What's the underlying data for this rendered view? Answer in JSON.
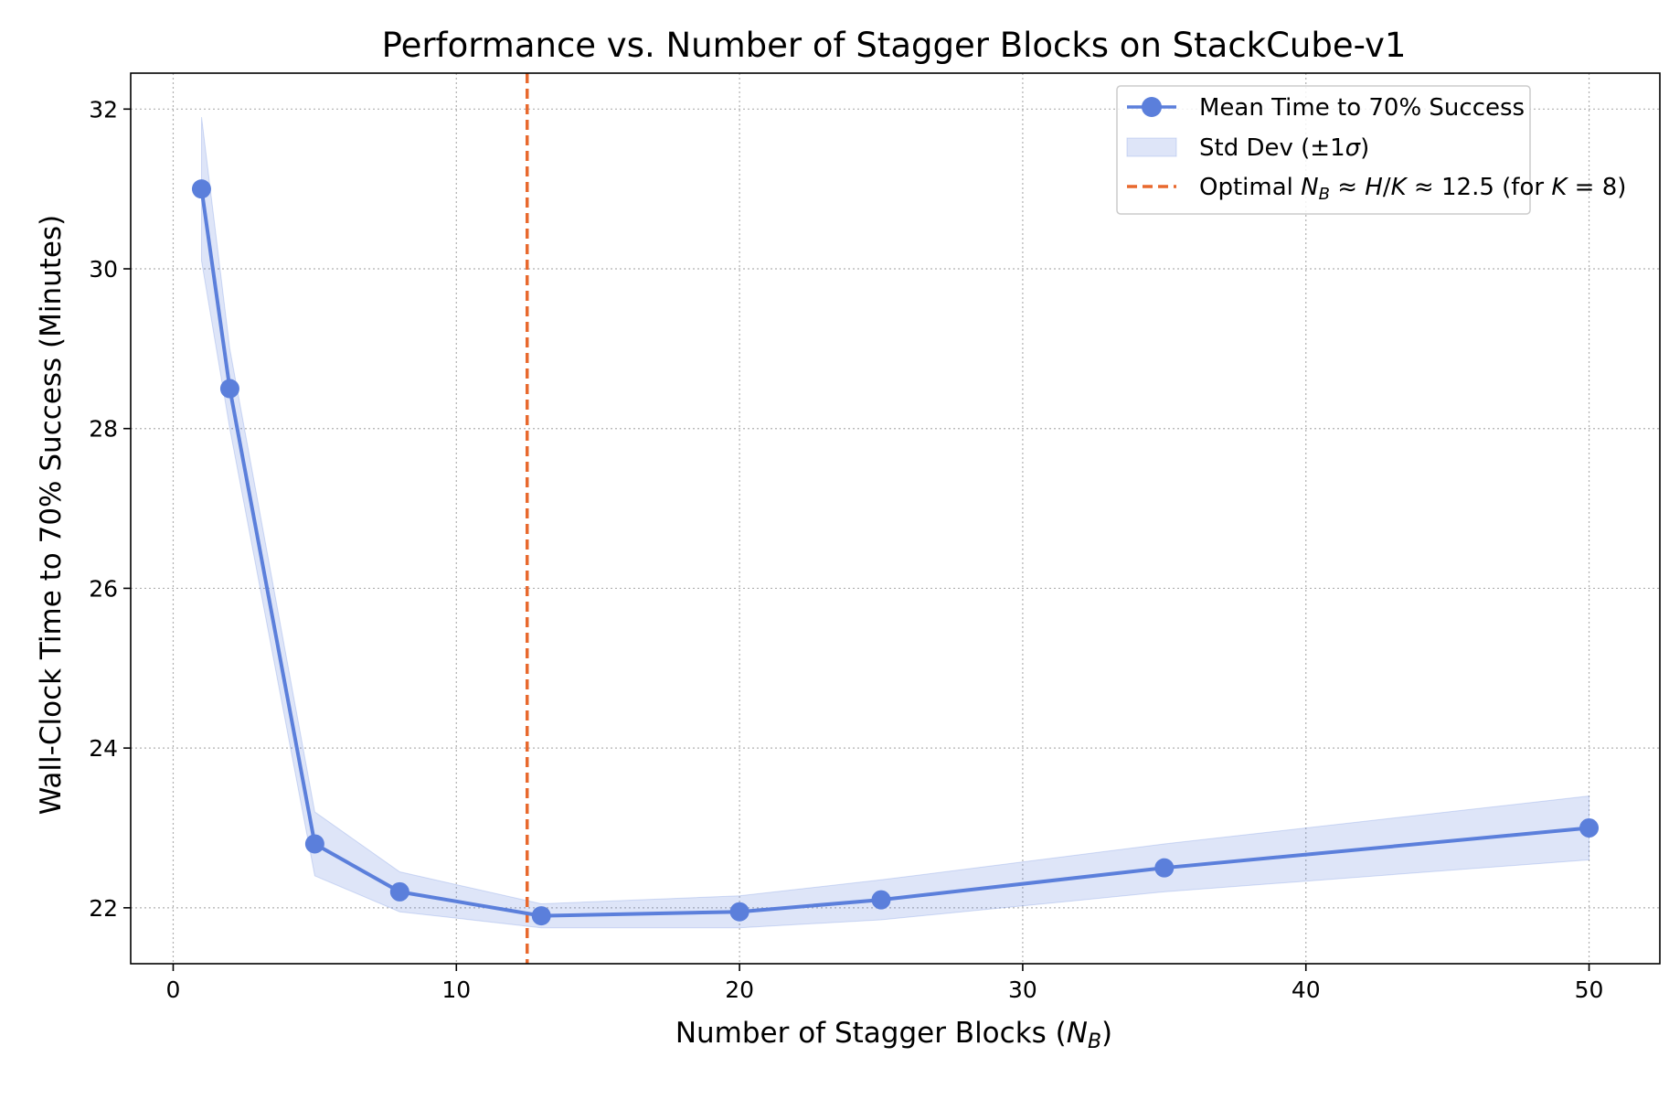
{
  "chart_data": {
    "type": "line",
    "title": "Performance vs. Number of Stagger Blocks on StackCube-v1",
    "xlabel": "Number of Stagger Blocks (",
    "xlabel_math": "N",
    "xlabel_sub": "B",
    "xlabel_close": ")",
    "ylabel": "Wall-Clock Time to 70% Success (Minutes)",
    "xlim": [
      -1.5,
      52.5
    ],
    "ylim": [
      21.3,
      32.45
    ],
    "xticks": [
      0,
      10,
      20,
      30,
      40,
      50
    ],
    "xtick_labels": [
      "0",
      "10",
      "20",
      "30",
      "40",
      "50"
    ],
    "yticks": [
      22,
      24,
      26,
      28,
      30,
      32
    ],
    "ytick_labels": [
      "22",
      "24",
      "26",
      "28",
      "30",
      "32"
    ],
    "grid": true,
    "legend_position": "upper-right",
    "series": [
      {
        "name": "Mean Time to 70% Success",
        "color": "#5b7fdb",
        "x": [
          1,
          2,
          5,
          8,
          13,
          20,
          25,
          35,
          50
        ],
        "y": [
          31.0,
          28.5,
          22.8,
          22.2,
          21.9,
          21.95,
          22.1,
          22.5,
          23.0
        ]
      }
    ],
    "band": {
      "name_prefix": "Std Dev (±1",
      "name_math": "σ",
      "name_suffix": ")",
      "color": "#5b7fdb",
      "x": [
        1,
        2,
        5,
        8,
        13,
        20,
        25,
        35,
        50
      ],
      "upper": [
        31.9,
        29.0,
        23.2,
        22.45,
        22.05,
        22.15,
        22.35,
        22.8,
        23.4
      ],
      "lower": [
        30.1,
        28.0,
        22.4,
        21.95,
        21.75,
        21.75,
        21.85,
        22.2,
        22.6
      ]
    },
    "reference_line": {
      "x": 12.5,
      "color": "#e8692e",
      "label_parts": [
        "Optimal ",
        "N",
        "B",
        " ≈ ",
        "H",
        "/",
        "K",
        " ≈ 12.5 (for ",
        "K",
        " = 8)"
      ]
    }
  }
}
